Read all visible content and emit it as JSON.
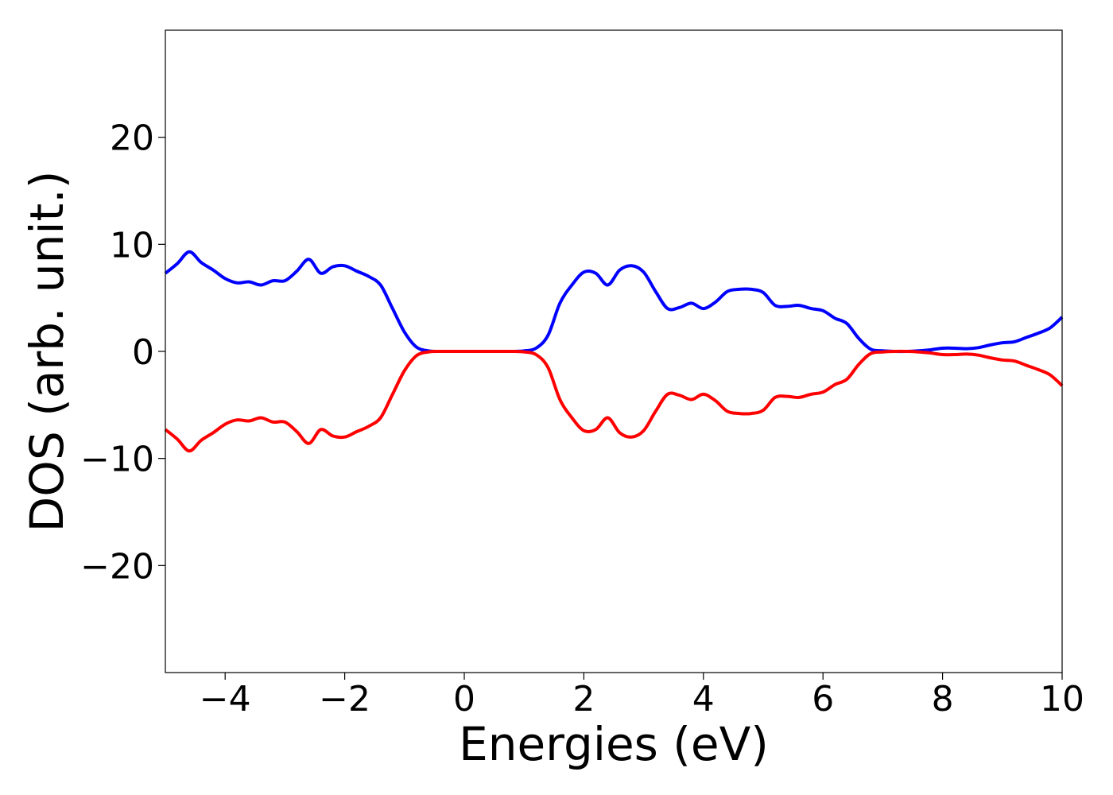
{
  "chart_data": {
    "type": "line",
    "title": "",
    "xlabel": "Energies (eV)",
    "ylabel": "DOS (arb. unit.)",
    "xlim": [
      -5,
      10
    ],
    "ylim": [
      -30,
      30
    ],
    "xticks": [
      -4,
      -2,
      0,
      2,
      4,
      6,
      8,
      10
    ],
    "xtick_labels": [
      "−4",
      "−2",
      "0",
      "2",
      "4",
      "6",
      "8",
      "10"
    ],
    "yticks": [
      20,
      10,
      0,
      -10,
      -20
    ],
    "ytick_labels": [
      "20",
      "10",
      "0",
      "−10",
      "−20"
    ],
    "grid": false,
    "legend": "none",
    "x": [
      -5.0,
      -4.8,
      -4.6,
      -4.4,
      -4.2,
      -4.0,
      -3.8,
      -3.6,
      -3.4,
      -3.2,
      -3.0,
      -2.8,
      -2.6,
      -2.4,
      -2.2,
      -2.0,
      -1.8,
      -1.6,
      -1.4,
      -1.2,
      -1.0,
      -0.8,
      -0.6,
      -0.4,
      -0.2,
      0.0,
      0.2,
      0.4,
      0.6,
      0.8,
      1.0,
      1.2,
      1.4,
      1.6,
      1.8,
      2.0,
      2.2,
      2.4,
      2.6,
      2.8,
      3.0,
      3.2,
      3.4,
      3.6,
      3.8,
      4.0,
      4.2,
      4.4,
      4.6,
      4.8,
      5.0,
      5.2,
      5.4,
      5.6,
      5.8,
      6.0,
      6.2,
      6.4,
      6.6,
      6.8,
      7.0,
      7.2,
      7.4,
      7.6,
      7.8,
      8.0,
      8.2,
      8.4,
      8.6,
      8.8,
      9.0,
      9.2,
      9.4,
      9.6,
      9.8,
      10.0
    ],
    "series": [
      {
        "color": "#0000ff",
        "values": [
          7.3,
          8.2,
          9.3,
          8.3,
          7.6,
          6.8,
          6.4,
          6.5,
          6.2,
          6.6,
          6.6,
          7.5,
          8.6,
          7.3,
          7.9,
          8.0,
          7.5,
          7.0,
          6.2,
          4.0,
          1.8,
          0.4,
          0.05,
          0.0,
          0.0,
          0.0,
          0.0,
          0.0,
          0.0,
          0.0,
          0.05,
          0.3,
          1.5,
          4.5,
          6.2,
          7.4,
          7.3,
          6.2,
          7.6,
          8.0,
          7.4,
          5.6,
          4.0,
          4.1,
          4.5,
          4.0,
          4.6,
          5.6,
          5.8,
          5.8,
          5.5,
          4.3,
          4.2,
          4.3,
          4.0,
          3.8,
          3.1,
          2.6,
          1.2,
          0.2,
          0.05,
          0.0,
          0.0,
          0.05,
          0.15,
          0.3,
          0.3,
          0.25,
          0.35,
          0.6,
          0.8,
          0.9,
          1.3,
          1.7,
          2.2,
          3.2
        ]
      },
      {
        "color": "#ff0000",
        "values": [
          -7.3,
          -8.2,
          -9.3,
          -8.3,
          -7.6,
          -6.8,
          -6.4,
          -6.5,
          -6.2,
          -6.6,
          -6.6,
          -7.5,
          -8.6,
          -7.3,
          -7.9,
          -8.0,
          -7.5,
          -7.0,
          -6.2,
          -4.0,
          -1.8,
          -0.4,
          -0.05,
          0.0,
          0.0,
          0.0,
          0.0,
          0.0,
          0.0,
          0.0,
          -0.05,
          -0.3,
          -1.5,
          -4.5,
          -6.2,
          -7.4,
          -7.3,
          -6.2,
          -7.6,
          -8.0,
          -7.4,
          -5.6,
          -4.0,
          -4.1,
          -4.5,
          -4.0,
          -4.6,
          -5.6,
          -5.8,
          -5.8,
          -5.5,
          -4.3,
          -4.2,
          -4.3,
          -4.0,
          -3.8,
          -3.1,
          -2.6,
          -1.2,
          -0.2,
          -0.05,
          0.0,
          0.0,
          -0.05,
          -0.15,
          -0.3,
          -0.3,
          -0.25,
          -0.35,
          -0.6,
          -0.8,
          -0.9,
          -1.3,
          -1.7,
          -2.2,
          -3.2
        ]
      }
    ]
  }
}
